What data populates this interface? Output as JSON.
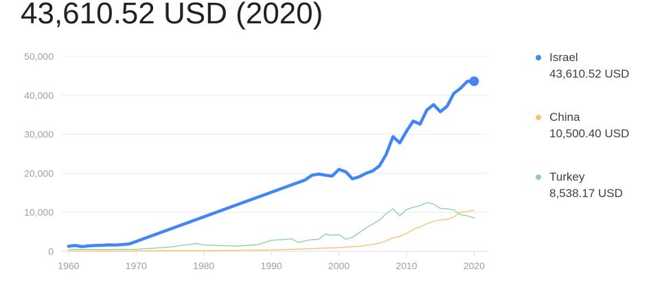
{
  "headline": "43,610.52 USD (2020)",
  "colors": {
    "israel": "#4285f4",
    "china": "#f6c46e",
    "turkey": "#93cf9f",
    "grid": "#ebebeb",
    "axis": "#9aa0a6"
  },
  "chart_data": {
    "type": "line",
    "title": "",
    "xlabel": "",
    "ylabel": "",
    "xlim": [
      1959,
      2022
    ],
    "ylim": [
      0,
      50000
    ],
    "grid": true,
    "legend_position": "right",
    "x_ticks": [
      "1960",
      "1970",
      "1980",
      "1990",
      "2000",
      "2010",
      "2020"
    ],
    "y_ticks": [
      "0",
      "10,000",
      "20,000",
      "30,000",
      "40,000",
      "50,000"
    ],
    "series": [
      {
        "name": "Israel",
        "latest_value": "43,610.52 USD",
        "color": "#4285f4",
        "x": [
          1960,
          1961,
          1962,
          1963,
          1964,
          1965,
          1966,
          1967,
          1968,
          1969,
          1995,
          1996,
          1997,
          1998,
          1999,
          2000,
          2001,
          2002,
          2003,
          2004,
          2005,
          2006,
          2007,
          2008,
          2009,
          2010,
          2011,
          2012,
          2013,
          2014,
          2015,
          2016,
          2017,
          2018,
          2019,
          2020
        ],
        "y": [
          1300,
          1500,
          1200,
          1400,
          1500,
          1550,
          1650,
          1600,
          1750,
          1900,
          18300,
          19500,
          19800,
          19500,
          19300,
          21000,
          20400,
          18600,
          19100,
          20000,
          20600,
          21900,
          24900,
          29400,
          27800,
          30800,
          33400,
          32600,
          36200,
          37600,
          35800,
          37200,
          40500,
          41800,
          43600,
          43610
        ]
      },
      {
        "name": "China",
        "latest_value": "10,500.40 USD",
        "color": "#f6c46e",
        "x": [
          1960,
          1965,
          1970,
          1975,
          1980,
          1985,
          1990,
          1995,
          2000,
          2003,
          2005,
          2006,
          2007,
          2008,
          2009,
          2010,
          2011,
          2012,
          2013,
          2014,
          2015,
          2016,
          2017,
          2018,
          2019,
          2020
        ],
        "y": [
          90,
          100,
          110,
          180,
          195,
          290,
          320,
          610,
          960,
          1290,
          1750,
          2100,
          2700,
          3470,
          3830,
          4550,
          5620,
          6300,
          7020,
          7680,
          8070,
          8150,
          8820,
          9980,
          10260,
          10500
        ]
      },
      {
        "name": "Turkey",
        "latest_value": "8,538.17 USD",
        "color": "#93cf9f",
        "x": [
          1960,
          1965,
          1970,
          1975,
          1979,
          1980,
          1985,
          1988,
          1990,
          1993,
          1994,
          1996,
          1997,
          1998,
          1999,
          2000,
          2001,
          2002,
          2004,
          2006,
          2007,
          2008,
          2009,
          2010,
          2011,
          2012,
          2013,
          2014,
          2015,
          2016,
          2017,
          2018,
          2019,
          2020
        ],
        "y": [
          500,
          450,
          500,
          1100,
          2050,
          1600,
          1350,
          1700,
          2800,
          3200,
          2300,
          3000,
          3100,
          4400,
          4100,
          4300,
          3100,
          3600,
          6000,
          8000,
          9700,
          10900,
          9100,
          10700,
          11300,
          11700,
          12500,
          12100,
          11000,
          10900,
          10600,
          9400,
          9100,
          8538
        ]
      }
    ]
  }
}
